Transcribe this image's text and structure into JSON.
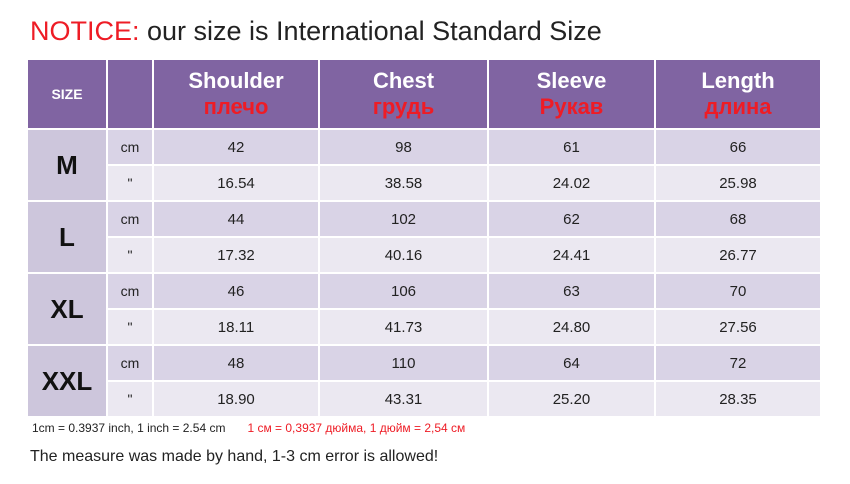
{
  "notice": {
    "label": "NOTICE:",
    "text": " our size is International Standard Size"
  },
  "table": {
    "size_header": "SIZE",
    "columns": [
      {
        "en": "Shoulder",
        "ru": "плечо"
      },
      {
        "en": "Chest",
        "ru": "грудь"
      },
      {
        "en": "Sleeve",
        "ru": "Рукав"
      },
      {
        "en": "Length",
        "ru": "длина"
      }
    ],
    "sizes": [
      {
        "label": "M",
        "cm_unit": "cm",
        "cm": [
          "42",
          "98",
          "61",
          "66"
        ],
        "in_unit": "\"",
        "in": [
          "16.54",
          "38.58",
          "24.02",
          "25.98"
        ]
      },
      {
        "label": "L",
        "cm_unit": "cm",
        "cm": [
          "44",
          "102",
          "62",
          "68"
        ],
        "in_unit": "\"",
        "in": [
          "17.32",
          "40.16",
          "24.41",
          "26.77"
        ]
      },
      {
        "label": "XL",
        "cm_unit": "cm",
        "cm": [
          "46",
          "106",
          "63",
          "70"
        ],
        "in_unit": "\"",
        "in": [
          "18.11",
          "41.73",
          "24.80",
          "27.56"
        ]
      },
      {
        "label": "XXL",
        "cm_unit": "cm",
        "cm": [
          "48",
          "110",
          "64",
          "72"
        ],
        "in_unit": "\"",
        "in": [
          "18.90",
          "43.31",
          "25.20",
          "28.35"
        ]
      }
    ]
  },
  "conversion": {
    "en": "1cm = 0.3937 inch,  1 inch = 2.54 cm",
    "ru": "1 см = 0,3937 дюйма, 1 дюйм = 2,54 см"
  },
  "measure_note": "The measure was made by hand, 1-3 cm error is allowed!",
  "colors": {
    "header_purple": "#8064a2",
    "size_cell": "#cdc6dc",
    "row_cm": "#d9d3e6",
    "row_inch": "#ebe8f1",
    "red": "#ee1c25"
  }
}
